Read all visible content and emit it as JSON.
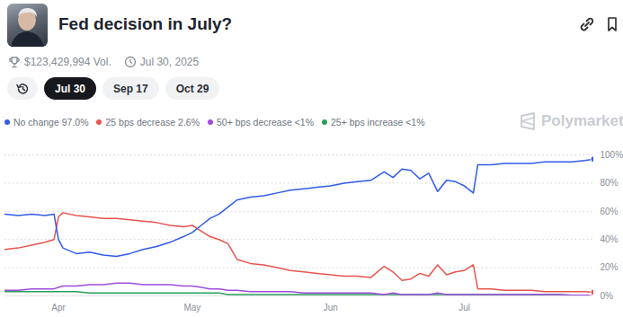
{
  "chart_data": {
    "type": "line",
    "title": "Fed decision in July?",
    "volume": "$123,429,994 Vol.",
    "end_date": "Jul 30, 2025",
    "tabs": [
      "Jul 30",
      "Sep 17",
      "Oct 29"
    ],
    "active_tab": "Jul 30",
    "watermark": "Polymarket",
    "x": [
      79,
      82,
      85,
      88,
      90,
      91,
      92,
      95,
      98,
      101,
      104,
      107,
      110,
      113,
      116,
      119,
      121,
      123,
      125,
      127,
      129,
      131,
      134,
      137,
      140,
      143,
      146,
      149,
      152,
      155,
      158,
      161,
      164,
      166,
      168,
      170,
      172,
      174,
      176,
      178,
      180,
      182,
      184,
      185,
      188,
      191,
      194,
      197,
      200,
      203,
      206,
      209,
      211
    ],
    "xlim": [
      79,
      211
    ],
    "xticks": [
      {
        "value": 91,
        "label": "Apr"
      },
      {
        "value": 121,
        "label": "May"
      },
      {
        "value": 152,
        "label": "Jun"
      },
      {
        "value": 182,
        "label": "Jul"
      }
    ],
    "ylim": [
      0,
      100
    ],
    "yticks": [
      {
        "value": 0,
        "label": "0%"
      },
      {
        "value": 20,
        "label": "20%"
      },
      {
        "value": 40,
        "label": "40%"
      },
      {
        "value": 60,
        "label": "60%"
      },
      {
        "value": 80,
        "label": "80%"
      },
      {
        "value": 100,
        "label": "100%"
      }
    ],
    "grid": true,
    "series": [
      {
        "name": "No change",
        "current_label": "97.0%",
        "color": "#2f5bea",
        "values": [
          58,
          57,
          58,
          57,
          58,
          40,
          34,
          30,
          31,
          29,
          28,
          30,
          33,
          35,
          38,
          42,
          45,
          50,
          55,
          58,
          63,
          68,
          70,
          71,
          73,
          75,
          76,
          77,
          78,
          80,
          81,
          82,
          88,
          84,
          90,
          89,
          83,
          87,
          74,
          82,
          81,
          78,
          73,
          93,
          93,
          94,
          94,
          94,
          95,
          95,
          95,
          96,
          97
        ]
      },
      {
        "name": "25 bps decrease",
        "current_label": "2.6%",
        "color": "#e8544e",
        "values": [
          33,
          34,
          36,
          38,
          40,
          56,
          59,
          57,
          56,
          55,
          55,
          54,
          53,
          52,
          50,
          49,
          50,
          46,
          42,
          40,
          37,
          26,
          23,
          22,
          20,
          18,
          17,
          16,
          15,
          14,
          14,
          13,
          21,
          17,
          11,
          12,
          16,
          14,
          22,
          15,
          17,
          18,
          22,
          5,
          5,
          4,
          4,
          4,
          3,
          3,
          3,
          3,
          2.6
        ]
      },
      {
        "name": "50+ bps decrease",
        "current_label": "<1%",
        "color": "#9d4edd",
        "values": [
          4,
          4,
          5,
          5,
          5,
          6,
          7,
          7,
          8,
          8,
          9,
          9,
          8,
          8,
          8,
          7,
          7,
          6,
          5,
          5,
          4,
          4,
          3,
          3,
          3,
          3,
          2,
          2,
          2,
          2,
          2,
          2,
          1,
          2,
          1,
          1,
          1,
          1,
          2,
          1,
          1,
          1,
          1,
          1,
          1,
          1,
          1,
          1,
          1,
          1,
          0.5,
          0.5,
          0.5
        ]
      },
      {
        "name": "25+ bps increase",
        "current_label": "<1%",
        "color": "#2a9d5c",
        "values": [
          3,
          3,
          3,
          3,
          3,
          3,
          3,
          3,
          2,
          2,
          2,
          2,
          2,
          2,
          2,
          2,
          2,
          2,
          2,
          2,
          1,
          1,
          1,
          1,
          1,
          1,
          1,
          1,
          1,
          1,
          1,
          1,
          1,
          1,
          1,
          1,
          1,
          1,
          1,
          1,
          1,
          1,
          1,
          1,
          1,
          1,
          1,
          1,
          1,
          1,
          0.5,
          0.5,
          0.5
        ]
      }
    ]
  }
}
